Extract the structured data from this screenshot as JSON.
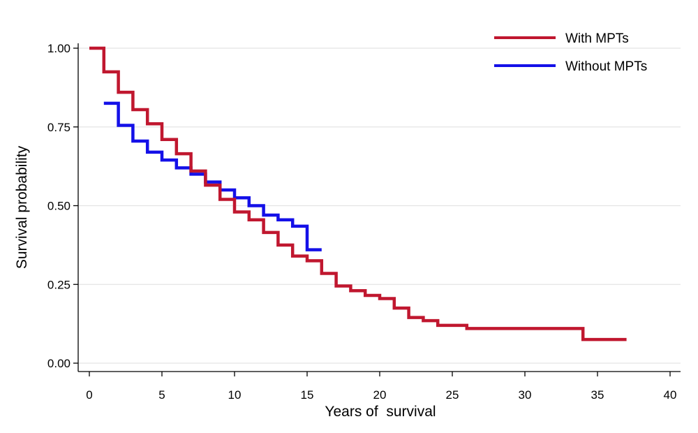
{
  "chart_data": {
    "type": "line",
    "step": true,
    "xlabel": "Years of  survival",
    "ylabel": "Survival probability",
    "xlim": [
      0,
      40
    ],
    "ylim": [
      0,
      1
    ],
    "x_ticks": [
      0,
      5,
      10,
      15,
      20,
      25,
      30,
      35,
      40
    ],
    "x_tick_labels": [
      "0",
      "5",
      "10",
      "15",
      "20",
      "25",
      "30",
      "35",
      "40"
    ],
    "y_ticks": [
      0,
      0.25,
      0.5,
      0.75,
      1
    ],
    "y_tick_labels": [
      "0.00",
      "0.25",
      "0.50",
      "0.75",
      "1.00"
    ],
    "grid": "horizontal",
    "legend_position": "top-right",
    "series": [
      {
        "name": "With MPTs",
        "color": "#c0172f",
        "x": [
          0,
          1,
          2,
          3,
          4,
          5,
          6,
          7,
          8,
          9,
          10,
          11,
          12,
          13,
          14,
          15,
          16,
          17,
          18,
          19,
          20,
          21,
          22,
          23,
          24,
          26,
          34,
          37
        ],
        "y": [
          1.0,
          0.925,
          0.86,
          0.805,
          0.76,
          0.71,
          0.665,
          0.61,
          0.565,
          0.52,
          0.48,
          0.455,
          0.415,
          0.375,
          0.34,
          0.325,
          0.285,
          0.245,
          0.23,
          0.215,
          0.205,
          0.175,
          0.145,
          0.135,
          0.12,
          0.11,
          0.075,
          0.075
        ]
      },
      {
        "name": "Without MPTs",
        "color": "#1410e8",
        "x": [
          1,
          2,
          3,
          4,
          5,
          6,
          7,
          8,
          9,
          10,
          11,
          12,
          13,
          14,
          15,
          16
        ],
        "y": [
          0.825,
          0.755,
          0.705,
          0.67,
          0.645,
          0.62,
          0.6,
          0.575,
          0.55,
          0.525,
          0.5,
          0.47,
          0.455,
          0.435,
          0.36,
          0.36
        ]
      }
    ]
  }
}
